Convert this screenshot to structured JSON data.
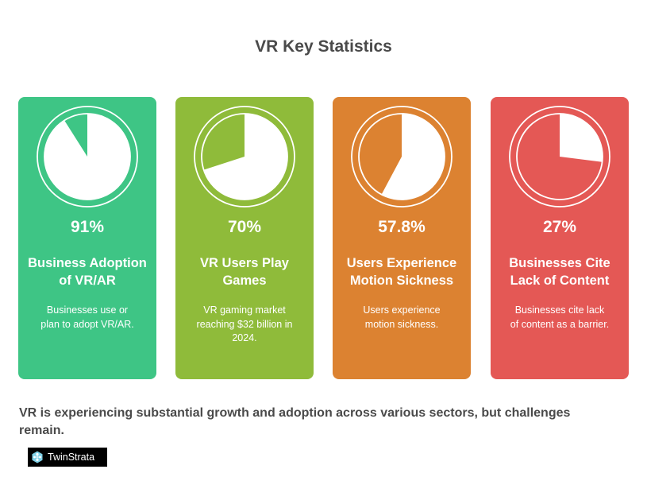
{
  "title": "VR Key Statistics",
  "cards": [
    {
      "value": "91%",
      "fraction": 0.91,
      "title": "Business Adoption of VR/AR",
      "description": "Businesses use or plan to adopt VR/AR.",
      "color": "#3ec585"
    },
    {
      "value": "70%",
      "fraction": 0.7,
      "title": "VR Users Play Games",
      "description": "VR gaming market reaching $32 billion in 2024.",
      "color": "#8fbb3a"
    },
    {
      "value": "57.8%",
      "fraction": 0.578,
      "title": "Users Experience Motion Sickness",
      "description": "Users experience motion sickness.",
      "color": "#dc8231"
    },
    {
      "value": "27%",
      "fraction": 0.27,
      "title": "Businesses Cite Lack of Content",
      "description": "Businesses cite lack of content as a barrier.",
      "color": "#e45855"
    }
  ],
  "summary": "VR is experiencing substantial growth and adoption across various sectors, but challenges remain.",
  "logo": {
    "text": "TwinStrata",
    "icon": "network-hexagon-icon"
  }
}
